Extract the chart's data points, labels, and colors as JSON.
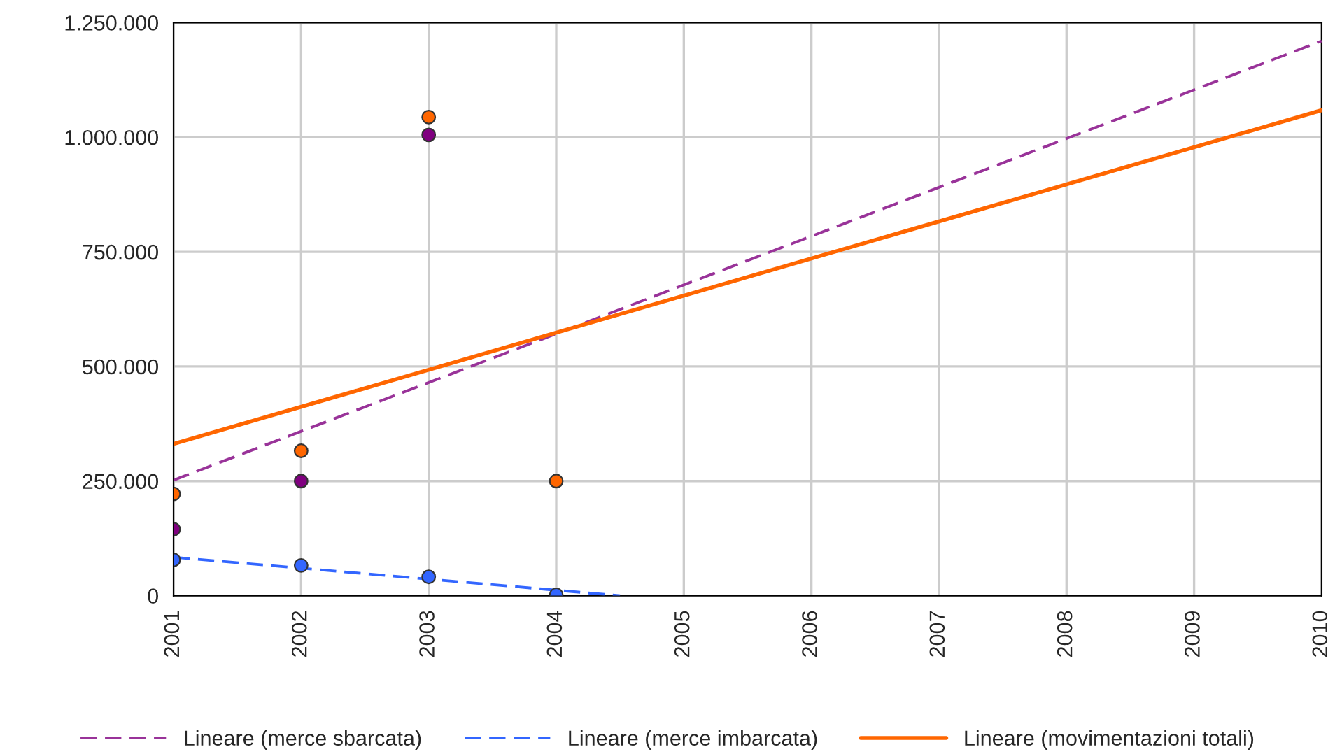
{
  "chart_data": {
    "type": "scatter",
    "xlim": [
      2001,
      2010
    ],
    "xticks": [
      2001,
      2002,
      2003,
      2004,
      2005,
      2006,
      2007,
      2008,
      2009,
      2010
    ],
    "ylim": [
      0,
      1250000
    ],
    "yticks": [
      {
        "value": 0,
        "label": "0"
      },
      {
        "value": 250000,
        "label": "250.000"
      },
      {
        "value": 500000,
        "label": "500.000"
      },
      {
        "value": 750000,
        "label": "750.000"
      },
      {
        "value": 1000000,
        "label": "1.000.000"
      },
      {
        "value": 1250000,
        "label": "1.250.000"
      }
    ],
    "grid": true,
    "legend": "bottom",
    "series": [
      {
        "color": "#800080",
        "marker": "circle",
        "x": [
          2001,
          2002,
          2003
        ],
        "values": [
          145000,
          250000,
          1005000
        ]
      },
      {
        "color": "#ff6600",
        "marker": "circle",
        "x": [
          2001,
          2002,
          2003,
          2004
        ],
        "values": [
          222000,
          316000,
          1044000,
          250000
        ]
      },
      {
        "color": "#3366ff",
        "marker": "circle",
        "x": [
          2001,
          2002,
          2003,
          2004
        ],
        "values": [
          78000,
          66000,
          41000,
          2000
        ]
      },
      {
        "type": "line",
        "name": "Lineare (merce sbarcata)",
        "color": "#993399",
        "line_style": "dashed",
        "marker": "none",
        "x": [
          2001,
          2010
        ],
        "values": [
          252000,
          1210000
        ]
      },
      {
        "type": "line",
        "name": "Lineare (merce imbarcata)",
        "color": "#3366ff",
        "line_style": "dashed",
        "marker": "none",
        "x": [
          2001,
          2004.5
        ],
        "values": [
          84000,
          0
        ]
      },
      {
        "type": "line",
        "name": "Lineare (movimentazioni totali)",
        "color": "#ff6600",
        "line_style": "solid",
        "marker": "none",
        "x": [
          2001,
          2010
        ],
        "values": [
          331000,
          1059000
        ]
      }
    ]
  }
}
